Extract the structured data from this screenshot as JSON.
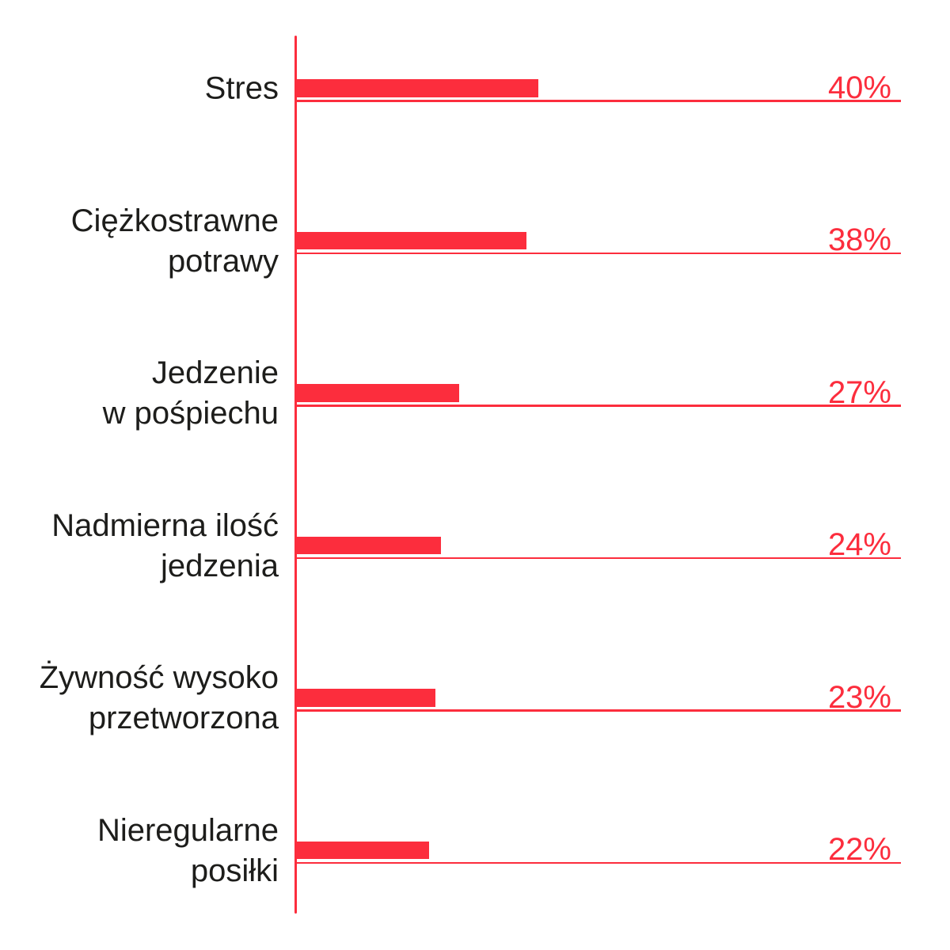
{
  "chart_data": {
    "type": "bar",
    "orientation": "horizontal",
    "unit": "%",
    "xlim": [
      0,
      100
    ],
    "grid": false,
    "legend": false,
    "categories": [
      "Stres",
      "Ciężkostrawne potrawy",
      "Jedzenie w pośpiechu",
      "Nadmierna ilość jedzenia",
      "Żywność wysoko przetworzona",
      "Nieregularne posiłki"
    ],
    "values": [
      40,
      38,
      27,
      24,
      23,
      22
    ],
    "rows": [
      {
        "label_lines": [
          "Stres"
        ],
        "value": 40,
        "value_label": "40%"
      },
      {
        "label_lines": [
          "Ciężkostrawne",
          "potrawy"
        ],
        "value": 38,
        "value_label": "38%"
      },
      {
        "label_lines": [
          "Jedzenie",
          "w pośpiechu"
        ],
        "value": 27,
        "value_label": "27%"
      },
      {
        "label_lines": [
          "Nadmierna ilość",
          "jedzenia"
        ],
        "value": 24,
        "value_label": "24%"
      },
      {
        "label_lines": [
          "Żywność wysoko",
          "przetworzona"
        ],
        "value": 23,
        "value_label": "23%"
      },
      {
        "label_lines": [
          "Nieregularne",
          "posiłki"
        ],
        "value": 22,
        "value_label": "22%"
      }
    ],
    "colors": {
      "bar": "#fc2d3d",
      "axis": "#fc2d3d",
      "reference_line": "#fc2d3d",
      "value_label": "#fc2d3d",
      "category_label": "#1d1d1b",
      "background": "#ffffff"
    }
  }
}
